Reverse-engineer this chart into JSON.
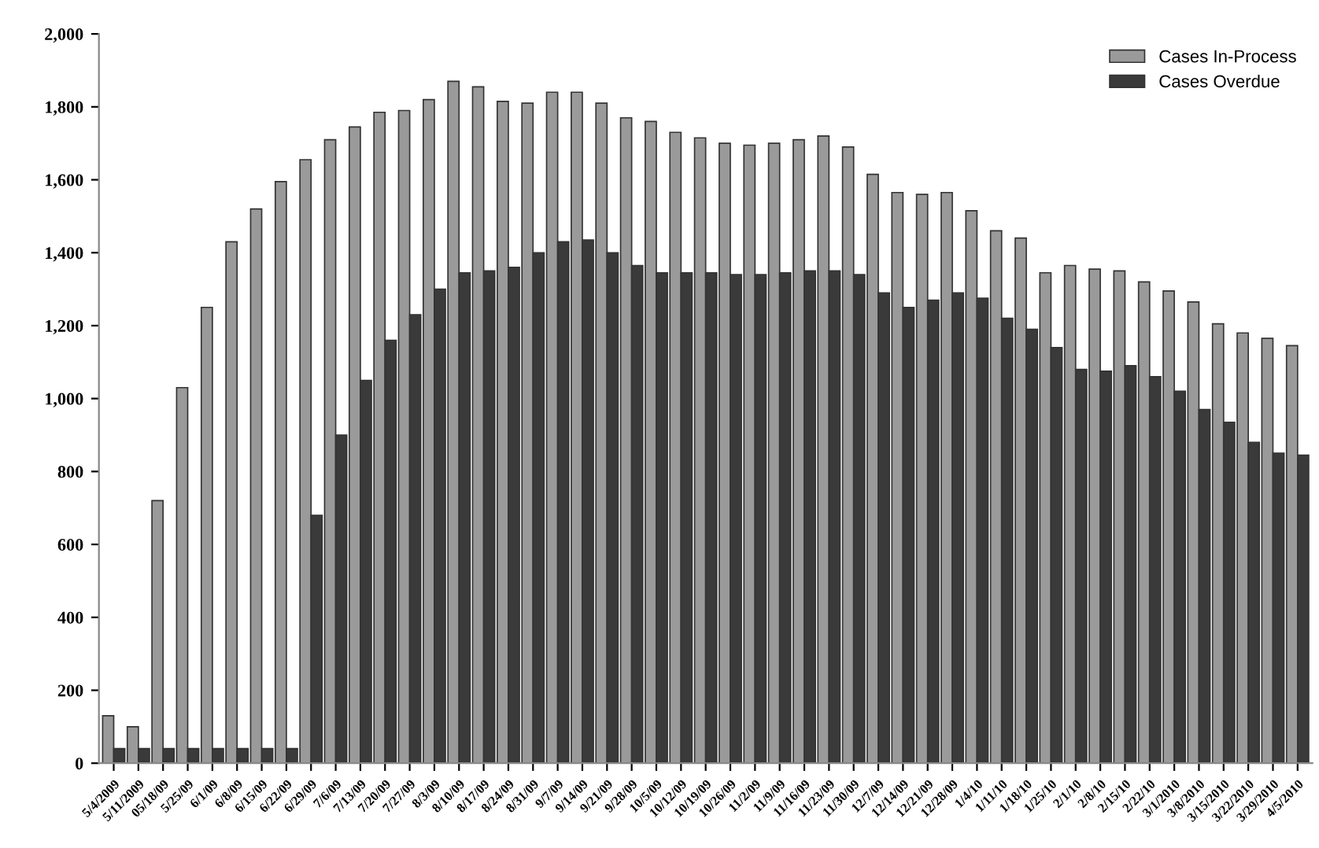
{
  "chart_data": {
    "type": "bar",
    "categories": [
      "5/4/2009",
      "5/11/2009",
      "05/18/09",
      "5/25/09",
      "6/1/09",
      "6/8/09",
      "6/15/09",
      "6/22/09",
      "6/29/09",
      "7/6/09",
      "7/13/09",
      "7/20/09",
      "7/27/09",
      "8/3/09",
      "8/10/09",
      "8/17/09",
      "8/24/09",
      "8/31/09",
      "9/7/09",
      "9/14/09",
      "9/21/09",
      "9/28/09",
      "10/5/09",
      "10/12/09",
      "10/19/09",
      "10/26/09",
      "11/2/09",
      "11/9/09",
      "11/16/09",
      "11/23/09",
      "11/30/09",
      "12/7/09",
      "12/14/09",
      "12/21/09",
      "12/28/09",
      "1/4/10",
      "1/11/10",
      "1/18/10",
      "1/25/10",
      "2/1/10",
      "2/8/10",
      "2/15/10",
      "2/22/10",
      "3/1/2010",
      "3/8/2010",
      "3/15/2010",
      "3/22/2010",
      "3/29/2010",
      "4/5/2010"
    ],
    "series": [
      {
        "name": "Cases In-Process",
        "color": "#9a9a9a",
        "values": [
          130,
          100,
          720,
          1030,
          1250,
          1430,
          1520,
          1595,
          1655,
          1710,
          1745,
          1785,
          1790,
          1820,
          1870,
          1855,
          1815,
          1810,
          1840,
          1840,
          1810,
          1770,
          1760,
          1730,
          1715,
          1700,
          1695,
          1700,
          1710,
          1720,
          1690,
          1615,
          1565,
          1560,
          1565,
          1515,
          1460,
          1440,
          1345,
          1365,
          1355,
          1350,
          1320,
          1295,
          1265,
          1205,
          1180,
          1165,
          1145
        ]
      },
      {
        "name": "Cases Overdue",
        "color": "#3a3a3a",
        "values": [
          40,
          40,
          40,
          40,
          40,
          40,
          40,
          40,
          680,
          900,
          1050,
          1160,
          1230,
          1300,
          1345,
          1350,
          1360,
          1400,
          1430,
          1435,
          1400,
          1365,
          1345,
          1345,
          1345,
          1340,
          1340,
          1345,
          1350,
          1350,
          1340,
          1290,
          1250,
          1270,
          1290,
          1275,
          1220,
          1190,
          1140,
          1080,
          1075,
          1090,
          1060,
          1020,
          970,
          935,
          880,
          850,
          845
        ]
      }
    ],
    "ylim": [
      0,
      2000
    ],
    "yticks": [
      0,
      200,
      400,
      600,
      800,
      {
        "value": 1000,
        "label": "1,000"
      },
      {
        "value": 1200,
        "label": "1,200"
      },
      {
        "value": 1400,
        "label": "1,400"
      },
      {
        "value": 1600,
        "label": "1,600"
      },
      {
        "value": 1800,
        "label": "1,800"
      },
      {
        "value": 2000,
        "label": "2,000"
      }
    ],
    "legend": "top right"
  }
}
